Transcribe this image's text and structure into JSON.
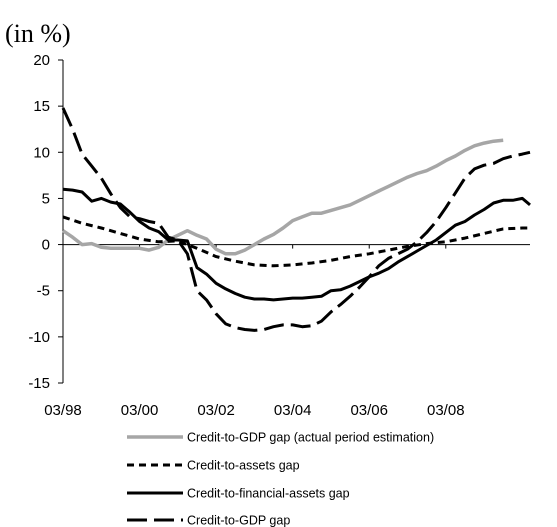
{
  "chart_data": {
    "type": "line",
    "title": "",
    "unit_label": "(in %)",
    "xlabel": "",
    "ylabel": "",
    "ylim": [
      -15,
      20
    ],
    "yticks": [
      -15,
      -10,
      -5,
      0,
      5,
      10,
      15,
      20
    ],
    "xlim": [
      0,
      12.2
    ],
    "x_tick_positions": [
      0,
      2,
      4,
      6,
      8,
      10
    ],
    "x_tick_labels": [
      "03/98",
      "03/00",
      "03/02",
      "03/04",
      "03/06",
      "03/08"
    ],
    "grid": false,
    "legend_position": "bottom",
    "series": [
      {
        "name": "Credit-to-GDP gap (actual period estimation)",
        "color": "#a6a6a6",
        "dash": "solid",
        "x": [
          0,
          0.25,
          0.5,
          0.75,
          1,
          1.25,
          1.5,
          1.75,
          2,
          2.25,
          2.5,
          2.75,
          3,
          3.25,
          3.5,
          3.75,
          4,
          4.25,
          4.5,
          4.75,
          5,
          5.25,
          5.5,
          5.75,
          6,
          6.25,
          6.5,
          6.75,
          7,
          7.25,
          7.5,
          7.75,
          8,
          8.25,
          8.5,
          8.75,
          9,
          9.25,
          9.5,
          9.75,
          10,
          10.25,
          10.5,
          10.75,
          11,
          11.25,
          11.5
        ],
        "y": [
          1.5,
          0.8,
          0,
          0.1,
          -0.3,
          -0.4,
          -0.4,
          -0.4,
          -0.4,
          -0.6,
          -0.3,
          0.5,
          1,
          1.5,
          1,
          0.6,
          -0.5,
          -1,
          -1,
          -0.6,
          0,
          0.6,
          1.1,
          1.8,
          2.6,
          3,
          3.4,
          3.4,
          3.7,
          4,
          4.3,
          4.8,
          5.3,
          5.8,
          6.3,
          6.8,
          7.3,
          7.7,
          8,
          8.5,
          9.1,
          9.6,
          10.2,
          10.7,
          11,
          11.2,
          11.3
        ]
      },
      {
        "name": "Credit-to-assets gap",
        "color": "#000000",
        "dash": "short",
        "x": [
          0,
          0.5,
          1,
          1.5,
          2,
          2.5,
          3,
          3.5,
          4,
          4.5,
          5,
          5.5,
          6,
          6.5,
          7,
          7.5,
          8,
          8.5,
          9,
          9.5,
          10,
          10.5,
          11,
          11.5,
          12,
          12.2
        ],
        "y": [
          3,
          2.3,
          1.8,
          1.2,
          0.6,
          0.3,
          0.4,
          -0.4,
          -1.3,
          -1.8,
          -2.2,
          -2.3,
          -2.2,
          -2,
          -1.7,
          -1.3,
          -1,
          -0.6,
          -0.2,
          0.1,
          0.3,
          0.7,
          1.2,
          1.7,
          1.8,
          1.8
        ]
      },
      {
        "name": "Credit-to-financial-assets gap",
        "color": "#000000",
        "dash": "solid",
        "x": [
          0,
          0.25,
          0.5,
          0.75,
          1,
          1.25,
          1.5,
          1.75,
          2,
          2.25,
          2.5,
          2.75,
          3,
          3.25,
          3.5,
          3.75,
          4,
          4.25,
          4.5,
          4.75,
          5,
          5.25,
          5.5,
          5.75,
          6,
          6.25,
          6.5,
          6.75,
          7,
          7.25,
          7.5,
          7.75,
          8,
          8.25,
          8.5,
          8.75,
          9,
          9.25,
          9.5,
          9.75,
          10,
          10.25,
          10.5,
          10.75,
          11,
          11.25,
          11.5,
          11.75,
          12,
          12.2
        ],
        "y": [
          6,
          5.9,
          5.7,
          4.7,
          5,
          4.6,
          4.4,
          3.5,
          2.5,
          1.8,
          1.4,
          0.5,
          0.5,
          0.4,
          -2.5,
          -3.2,
          -4.2,
          -4.8,
          -5.3,
          -5.7,
          -5.9,
          -5.9,
          -6,
          -5.9,
          -5.8,
          -5.8,
          -5.7,
          -5.6,
          -5,
          -4.9,
          -4.5,
          -4,
          -3.5,
          -3.1,
          -2.6,
          -1.9,
          -1.3,
          -0.7,
          -0.1,
          0.5,
          1.3,
          2.1,
          2.5,
          3.2,
          3.8,
          4.5,
          4.8,
          4.8,
          5,
          4.3
        ]
      },
      {
        "name": "Credit-to-GDP gap",
        "color": "#000000",
        "dash": "long",
        "x": [
          0,
          0.25,
          0.5,
          0.75,
          1,
          1.25,
          1.5,
          1.75,
          2,
          2.25,
          2.5,
          2.75,
          3,
          3.25,
          3.5,
          3.75,
          4,
          4.25,
          4.5,
          4.75,
          5,
          5.25,
          5.5,
          5.75,
          6,
          6.25,
          6.5,
          6.75,
          7,
          7.25,
          7.5,
          7.75,
          8,
          8.25,
          8.5,
          8.75,
          9,
          9.25,
          9.5,
          9.75,
          10,
          10.25,
          10.5,
          10.75,
          11,
          11.25,
          11.5,
          11.75,
          12,
          12.2
        ],
        "y": [
          14.8,
          12.5,
          9.8,
          8.5,
          7.2,
          5.5,
          4,
          3,
          2.8,
          2.5,
          2.3,
          0.8,
          0.5,
          -1,
          -5,
          -6,
          -7.5,
          -8.6,
          -9,
          -9.2,
          -9.3,
          -9.2,
          -8.9,
          -8.7,
          -8.7,
          -8.9,
          -8.8,
          -8.3,
          -7.3,
          -6.5,
          -5.6,
          -4.6,
          -3.5,
          -2.3,
          -1.5,
          -1,
          -0.5,
          0.3,
          1.3,
          2.5,
          4,
          5.6,
          7.2,
          8.2,
          8.6,
          8.8,
          9.3,
          9.6,
          9.8,
          10
        ]
      }
    ]
  }
}
